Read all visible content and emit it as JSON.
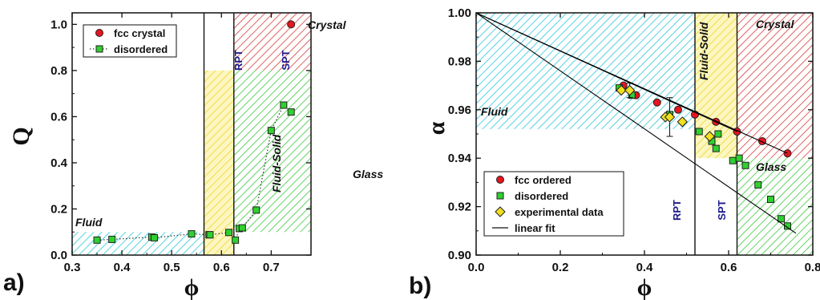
{
  "chart_data": [
    {
      "type": "scatter",
      "panel_label": "a)",
      "xlabel": "ϕ",
      "ylabel": "Q",
      "xlim": [
        0.3,
        0.78
      ],
      "ylim": [
        0.0,
        1.05
      ],
      "xticks": [
        0.3,
        0.4,
        0.5,
        0.6,
        0.7
      ],
      "yticks": [
        0.0,
        0.2,
        0.4,
        0.6,
        0.8,
        1.0
      ],
      "xtick_labels": [
        "0.3",
        "0.4",
        "0.5",
        "0.6",
        "0.7"
      ],
      "ytick_labels": [
        "0.0",
        "0.2",
        "0.4",
        "0.6",
        "0.8",
        "1.0"
      ],
      "legend": {
        "position": "top-left",
        "entries": [
          "fcc crystal",
          "disordered"
        ]
      },
      "series": [
        {
          "name": "fcc crystal",
          "marker": "circle",
          "color": "#e8141e",
          "x": [
            0.74
          ],
          "y": [
            1.0
          ]
        },
        {
          "name": "disordered",
          "marker": "square",
          "color": "#2fd02f",
          "line": "dotted",
          "x": [
            0.35,
            0.38,
            0.46,
            0.465,
            0.54,
            0.575,
            0.577,
            0.615,
            0.628,
            0.636,
            0.642,
            0.67,
            0.7,
            0.725,
            0.74
          ],
          "y": [
            0.065,
            0.068,
            0.078,
            0.075,
            0.092,
            0.088,
            0.088,
            0.098,
            0.065,
            0.115,
            0.118,
            0.195,
            0.54,
            0.65,
            0.62
          ]
        }
      ],
      "regions": [
        {
          "label": "Fluid",
          "x": [
            0.3,
            0.565
          ],
          "y": [
            0.0,
            0.1
          ],
          "color": "#2dc8d8"
        },
        {
          "label": "Fluid-Solid",
          "x": [
            0.565,
            0.625
          ],
          "y": [
            0.0,
            0.8
          ],
          "color": "#e8d830"
        },
        {
          "label": "Glass",
          "x": [
            0.625,
            0.78
          ],
          "y": [
            0.1,
            0.8
          ],
          "color": "#3cc83c"
        },
        {
          "label": "Crystal",
          "x": [
            0.625,
            0.78
          ],
          "y": [
            0.8,
            1.05
          ],
          "color": "#d83c3c"
        }
      ],
      "vlines": [
        {
          "label": "RPT",
          "x": 0.565
        },
        {
          "label": "SPT",
          "x": 0.625
        }
      ]
    },
    {
      "type": "scatter",
      "panel_label": "b)",
      "xlabel": "ϕ",
      "ylabel": "α",
      "xlim": [
        0.0,
        0.8
      ],
      "ylim": [
        0.9,
        1.0
      ],
      "xticks": [
        0.0,
        0.2,
        0.4,
        0.6,
        0.8
      ],
      "yticks": [
        0.9,
        0.92,
        0.94,
        0.96,
        0.98,
        1.0
      ],
      "xtick_labels": [
        "0.0",
        "0.2",
        "0.4",
        "0.6",
        "0.8"
      ],
      "ytick_labels": [
        "0.90",
        "0.92",
        "0.94",
        "0.96",
        "0.98",
        "1.00"
      ],
      "legend": {
        "position": "bottom-left",
        "entries": [
          "fcc ordered",
          "disordered",
          "experimental data",
          "linear fit"
        ]
      },
      "series": [
        {
          "name": "fcc ordered",
          "marker": "circle",
          "color": "#e8141e",
          "x": [
            0.35,
            0.38,
            0.43,
            0.48,
            0.52,
            0.57,
            0.62,
            0.68,
            0.74
          ],
          "y": [
            0.97,
            0.966,
            0.963,
            0.96,
            0.958,
            0.955,
            0.951,
            0.947,
            0.942
          ]
        },
        {
          "name": "disordered",
          "marker": "square",
          "color": "#2fd02f",
          "x": [
            0.34,
            0.37,
            0.46,
            0.53,
            0.56,
            0.57,
            0.575,
            0.61,
            0.625,
            0.64,
            0.67,
            0.7,
            0.725,
            0.74
          ],
          "y": [
            0.969,
            0.966,
            0.958,
            0.951,
            0.947,
            0.944,
            0.95,
            0.939,
            0.94,
            0.937,
            0.929,
            0.923,
            0.915,
            0.912
          ]
        },
        {
          "name": "experimental data",
          "marker": "diamond",
          "color": "#f0e020",
          "x": [
            0.345,
            0.365,
            0.45,
            0.46,
            0.49,
            0.555
          ],
          "y": [
            0.968,
            0.968,
            0.957,
            0.957,
            0.955,
            0.949
          ],
          "yerr": [
            0.0,
            0.003,
            0.0,
            0.008,
            0.0,
            0.0
          ]
        },
        {
          "name": "linear fit",
          "type": "line",
          "color": "#000000",
          "lines": [
            {
              "x": [
                0.0,
                0.74
              ],
              "y": [
                1.0,
                0.942
              ]
            },
            {
              "x": [
                0.0,
                0.62
              ],
              "y": [
                1.0,
                0.951
              ]
            },
            {
              "x": [
                0.0,
                0.76
              ],
              "y": [
                1.0,
                0.909
              ]
            }
          ]
        }
      ],
      "regions": [
        {
          "label": "Fluid",
          "x": [
            0.0,
            0.52
          ],
          "y": [
            0.952,
            1.0
          ],
          "color": "#2dc8d8"
        },
        {
          "label": "Fluid-Solid",
          "x": [
            0.52,
            0.62
          ],
          "y": [
            0.94,
            1.0
          ],
          "color": "#e8d830"
        },
        {
          "label": "Glass",
          "x": [
            0.62,
            0.8
          ],
          "y": [
            0.9,
            0.94
          ],
          "color": "#3cc83c"
        },
        {
          "label": "Crystal",
          "x": [
            0.62,
            0.8
          ],
          "y": [
            0.94,
            1.0
          ],
          "color": "#d83c3c"
        }
      ],
      "vlines": [
        {
          "label": "RPT",
          "x": 0.52
        },
        {
          "label": "SPT",
          "x": 0.62
        }
      ]
    }
  ]
}
